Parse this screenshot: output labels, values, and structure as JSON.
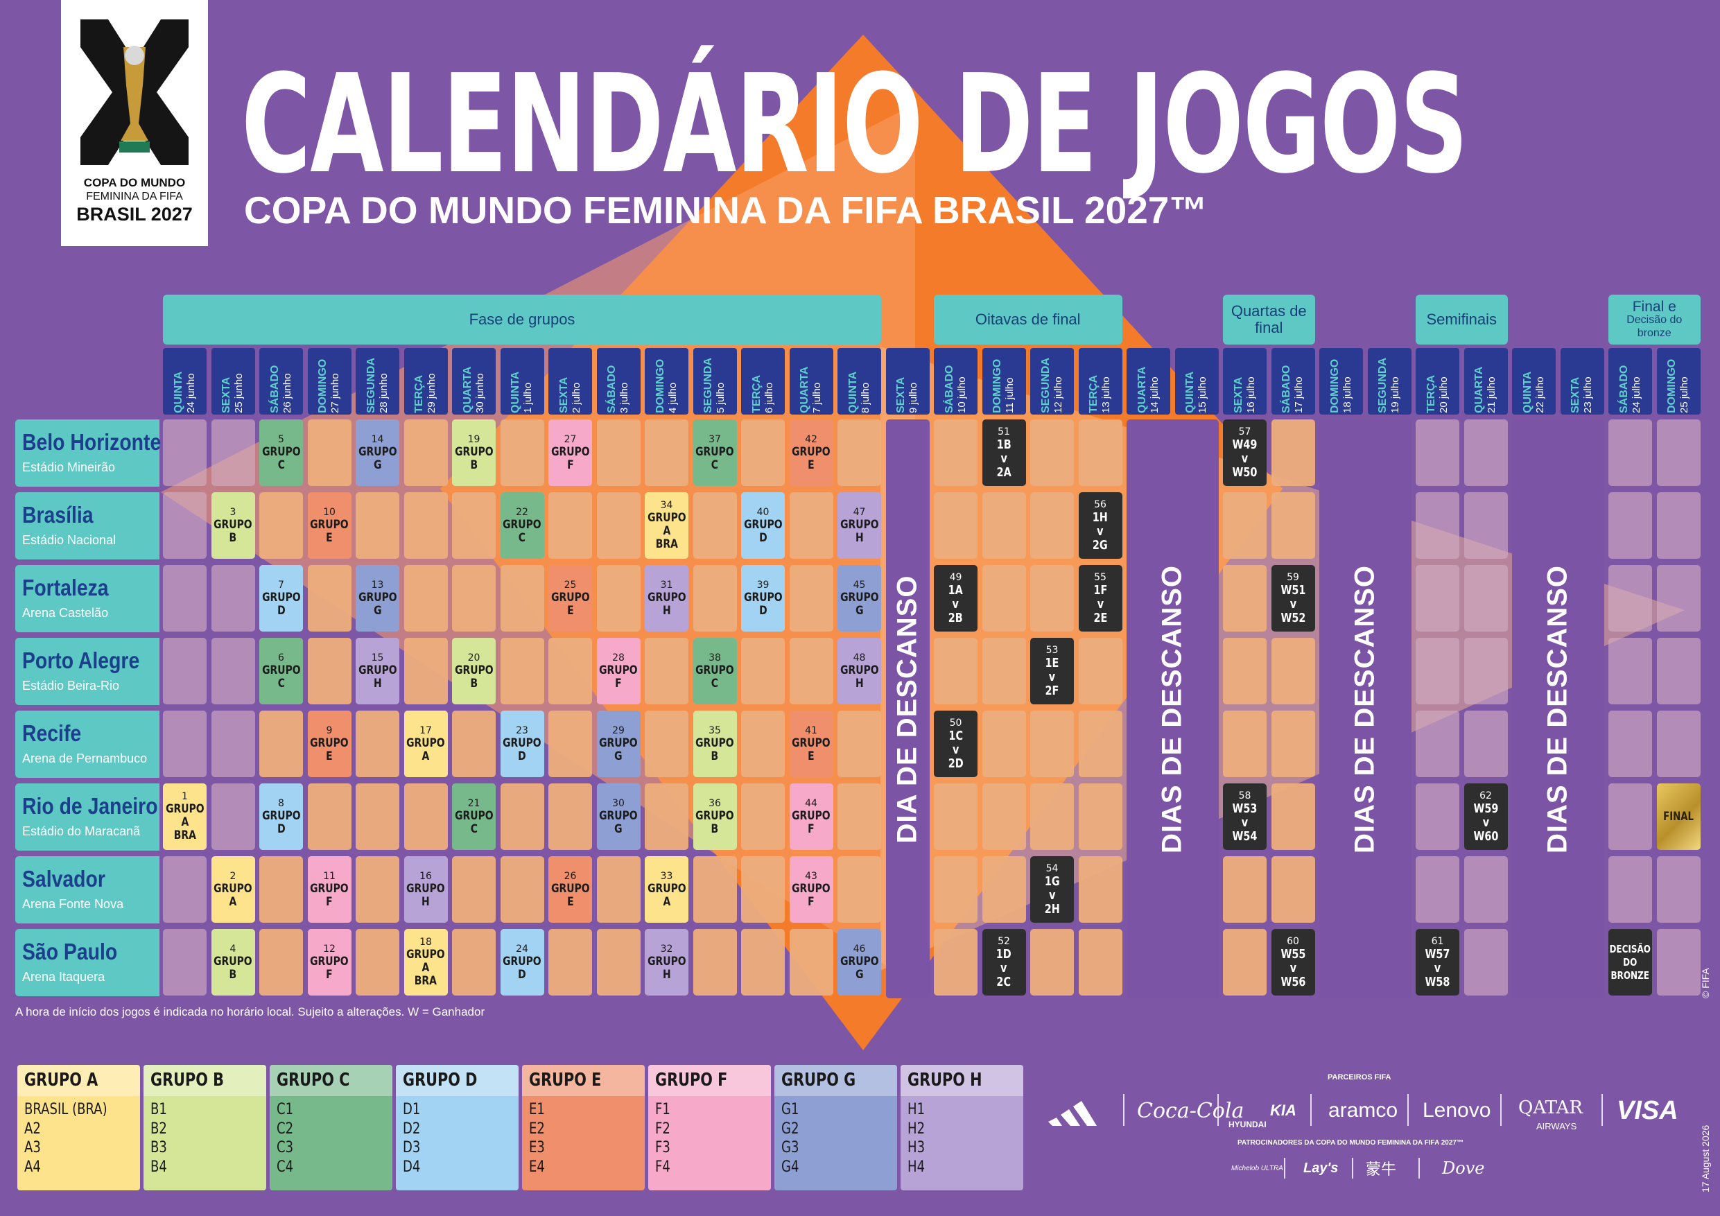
{
  "logo": {
    "line1": "COPA DO MUNDO",
    "line2": "FEMININA DA FIFA",
    "line3": "BRASIL 2027"
  },
  "header": {
    "title": "CALENDÁRIO DE JOGOS",
    "subtitle": "COPA DO MUNDO FEMININA DA FIFA BRASIL 2027™"
  },
  "phases": [
    {
      "label": "Fase de grupos",
      "start": 0,
      "span": 15
    },
    {
      "label": "Oitavas de final",
      "start": 16,
      "span": 4
    },
    {
      "label": "Quartas de final",
      "start": 22,
      "span": 2
    },
    {
      "label": "Semifinais",
      "start": 26,
      "span": 2
    },
    {
      "label": "Final e",
      "label2": "Decisão do bronze",
      "start": 30,
      "span": 2
    }
  ],
  "days": [
    {
      "wd": "QUINTA",
      "dt": "24 junho"
    },
    {
      "wd": "SEXTA",
      "dt": "25 junho"
    },
    {
      "wd": "SÁBADO",
      "dt": "26 junho"
    },
    {
      "wd": "DOMINGO",
      "dt": "27 junho"
    },
    {
      "wd": "SEGUNDA",
      "dt": "28 junho"
    },
    {
      "wd": "TERÇA",
      "dt": "29 junho"
    },
    {
      "wd": "QUARTA",
      "dt": "30 junho"
    },
    {
      "wd": "QUINTA",
      "dt": "1 julho"
    },
    {
      "wd": "SEXTA",
      "dt": "2 julho"
    },
    {
      "wd": "SÁBADO",
      "dt": "3 julho"
    },
    {
      "wd": "DOMINGO",
      "dt": "4 julho"
    },
    {
      "wd": "SEGUNDA",
      "dt": "5 julho"
    },
    {
      "wd": "TERÇA",
      "dt": "6 julho"
    },
    {
      "wd": "QUARTA",
      "dt": "7 julho"
    },
    {
      "wd": "QUINTA",
      "dt": "8 julho"
    },
    {
      "wd": "SEXTA",
      "dt": "9 julho"
    },
    {
      "wd": "SÁBADO",
      "dt": "10 julho"
    },
    {
      "wd": "DOMINGO",
      "dt": "11 julho"
    },
    {
      "wd": "SEGUNDA",
      "dt": "12 julho"
    },
    {
      "wd": "TERÇA",
      "dt": "13 julho"
    },
    {
      "wd": "QUARTA",
      "dt": "14 julho"
    },
    {
      "wd": "QUINTA",
      "dt": "15 julho"
    },
    {
      "wd": "SEXTA",
      "dt": "16 julho"
    },
    {
      "wd": "SÁBADO",
      "dt": "17 julho"
    },
    {
      "wd": "DOMINGO",
      "dt": "18 julho"
    },
    {
      "wd": "SEGUNDA",
      "dt": "19 julho"
    },
    {
      "wd": "TERÇA",
      "dt": "20 julho"
    },
    {
      "wd": "QUARTA",
      "dt": "21 julho"
    },
    {
      "wd": "QUINTA",
      "dt": "22 julho"
    },
    {
      "wd": "SEXTA",
      "dt": "23 julho"
    },
    {
      "wd": "SÁBADO",
      "dt": "24 julho"
    },
    {
      "wd": "DOMINGO",
      "dt": "25 julho"
    }
  ],
  "cities": [
    {
      "name": "Belo Horizonte",
      "stadium": "Estádio Mineirão"
    },
    {
      "name": "Brasília",
      "stadium": "Estádio Nacional"
    },
    {
      "name": "Fortaleza",
      "stadium": "Arena Castelão"
    },
    {
      "name": "Porto Alegre",
      "stadium": "Estádio Beira-Rio"
    },
    {
      "name": "Recife",
      "stadium": "Arena de Pernambuco"
    },
    {
      "name": "Rio de Janeiro",
      "stadium": "Estádio do Maracanã"
    },
    {
      "name": "Salvador",
      "stadium": "Arena Fonte Nova"
    },
    {
      "name": "São Paulo",
      "stadium": "Arena Itaquera"
    }
  ],
  "rest_blocks": [
    {
      "label": "DIA DE DESCANSO",
      "col": 15,
      "span": 1
    },
    {
      "label": "DIAS DE DESCANSO",
      "col": 20,
      "span": 2
    },
    {
      "label": "DIAS DE DESCANSO",
      "col": 24,
      "span": 2
    },
    {
      "label": "DIAS DE DESCANSO",
      "col": 28,
      "span": 2
    }
  ],
  "group_colors": {
    "A": "#fde38c",
    "B": "#d5e698",
    "C": "#78b98c",
    "D": "#a3d3f2",
    "E": "#ef8f6b",
    "F": "#f6a9c9",
    "G": "#8d9fd3",
    "H": "#b8a3d6"
  },
  "matches": [
    {
      "n": "1",
      "g": "A",
      "label": "GRUPO\nA\nBRA",
      "row": 5,
      "col": 0
    },
    {
      "n": "2",
      "g": "A",
      "label": "GRUPO\nA",
      "row": 6,
      "col": 1
    },
    {
      "n": "3",
      "g": "B",
      "label": "GRUPO\nB",
      "row": 1,
      "col": 1
    },
    {
      "n": "4",
      "g": "B",
      "label": "GRUPO\nB",
      "row": 7,
      "col": 1
    },
    {
      "n": "5",
      "g": "C",
      "label": "GRUPO\nC",
      "row": 0,
      "col": 2
    },
    {
      "n": "6",
      "g": "C",
      "label": "GRUPO\nC",
      "row": 3,
      "col": 2
    },
    {
      "n": "7",
      "g": "D",
      "label": "GRUPO\nD",
      "row": 2,
      "col": 2
    },
    {
      "n": "8",
      "g": "D",
      "label": "GRUPO\nD",
      "row": 5,
      "col": 2
    },
    {
      "n": "9",
      "g": "E",
      "label": "GRUPO\nE",
      "row": 4,
      "col": 3
    },
    {
      "n": "10",
      "g": "E",
      "label": "GRUPO\nE",
      "row": 1,
      "col": 3
    },
    {
      "n": "11",
      "g": "F",
      "label": "GRUPO\nF",
      "row": 6,
      "col": 3
    },
    {
      "n": "12",
      "g": "F",
      "label": "GRUPO\nF",
      "row": 7,
      "col": 3
    },
    {
      "n": "13",
      "g": "G",
      "label": "GRUPO\nG",
      "row": 2,
      "col": 4
    },
    {
      "n": "14",
      "g": "G",
      "label": "GRUPO\nG",
      "row": 0,
      "col": 4
    },
    {
      "n": "15",
      "g": "H",
      "label": "GRUPO\nH",
      "row": 3,
      "col": 4
    },
    {
      "n": "16",
      "g": "H",
      "label": "GRUPO\nH",
      "row": 6,
      "col": 5
    },
    {
      "n": "17",
      "g": "A",
      "label": "GRUPO\nA",
      "row": 4,
      "col": 5
    },
    {
      "n": "18",
      "g": "A",
      "label": "GRUPO\nA\nBRA",
      "row": 7,
      "col": 5
    },
    {
      "n": "19",
      "g": "B",
      "label": "GRUPO\nB",
      "row": 0,
      "col": 6
    },
    {
      "n": "20",
      "g": "B",
      "label": "GRUPO\nB",
      "row": 3,
      "col": 6
    },
    {
      "n": "21",
      "g": "C",
      "label": "GRUPO\nC",
      "row": 5,
      "col": 6
    },
    {
      "n": "22",
      "g": "C",
      "label": "GRUPO\nC",
      "row": 1,
      "col": 7
    },
    {
      "n": "23",
      "g": "D",
      "label": "GRUPO\nD",
      "row": 4,
      "col": 7
    },
    {
      "n": "24",
      "g": "D",
      "label": "GRUPO\nD",
      "row": 7,
      "col": 7
    },
    {
      "n": "25",
      "g": "E",
      "label": "GRUPO\nE",
      "row": 2,
      "col": 8
    },
    {
      "n": "26",
      "g": "E",
      "label": "GRUPO\nE",
      "row": 6,
      "col": 8
    },
    {
      "n": "27",
      "g": "F",
      "label": "GRUPO\nF",
      "row": 0,
      "col": 8
    },
    {
      "n": "28",
      "g": "F",
      "label": "GRUPO\nF",
      "row": 3,
      "col": 9
    },
    {
      "n": "29",
      "g": "G",
      "label": "GRUPO\nG",
      "row": 4,
      "col": 9
    },
    {
      "n": "30",
      "g": "G",
      "label": "GRUPO\nG",
      "row": 5,
      "col": 9
    },
    {
      "n": "31",
      "g": "H",
      "label": "GRUPO\nH",
      "row": 2,
      "col": 10
    },
    {
      "n": "32",
      "g": "H",
      "label": "GRUPO\nH",
      "row": 7,
      "col": 10
    },
    {
      "n": "33",
      "g": "A",
      "label": "GRUPO\nA",
      "row": 6,
      "col": 10
    },
    {
      "n": "34",
      "g": "A",
      "label": "GRUPO\nA\nBRA",
      "row": 1,
      "col": 10
    },
    {
      "n": "35",
      "g": "B",
      "label": "GRUPO\nB",
      "row": 4,
      "col": 11
    },
    {
      "n": "36",
      "g": "B",
      "label": "GRUPO\nB",
      "row": 5,
      "col": 11
    },
    {
      "n": "37",
      "g": "C",
      "label": "GRUPO\nC",
      "row": 0,
      "col": 11
    },
    {
      "n": "38",
      "g": "C",
      "label": "GRUPO\nC",
      "row": 3,
      "col": 11
    },
    {
      "n": "39",
      "g": "D",
      "label": "GRUPO\nD",
      "row": 2,
      "col": 12
    },
    {
      "n": "40",
      "g": "D",
      "label": "GRUPO\nD",
      "row": 1,
      "col": 12
    },
    {
      "n": "41",
      "g": "E",
      "label": "GRUPO\nE",
      "row": 4,
      "col": 13
    },
    {
      "n": "42",
      "g": "E",
      "label": "GRUPO\nE",
      "row": 0,
      "col": 13
    },
    {
      "n": "43",
      "g": "F",
      "label": "GRUPO\nF",
      "row": 6,
      "col": 13
    },
    {
      "n": "44",
      "g": "F",
      "label": "GRUPO\nF",
      "row": 5,
      "col": 13
    },
    {
      "n": "45",
      "g": "G",
      "label": "GRUPO\nG",
      "row": 2,
      "col": 14
    },
    {
      "n": "46",
      "g": "G",
      "label": "GRUPO\nG",
      "row": 7,
      "col": 14
    },
    {
      "n": "47",
      "g": "H",
      "label": "GRUPO\nH",
      "row": 1,
      "col": 14
    },
    {
      "n": "48",
      "g": "H",
      "label": "GRUPO\nH",
      "row": 3,
      "col": 14
    }
  ],
  "knockouts": [
    {
      "n": "49",
      "label": "1A\nv\n2B",
      "row": 2,
      "col": 16
    },
    {
      "n": "50",
      "label": "1C\nv\n2D",
      "row": 4,
      "col": 16
    },
    {
      "n": "51",
      "label": "1B\nv\n2A",
      "row": 0,
      "col": 17
    },
    {
      "n": "52",
      "label": "1D\nv\n2C",
      "row": 7,
      "col": 17
    },
    {
      "n": "53",
      "label": "1E\nv\n2F",
      "row": 3,
      "col": 18
    },
    {
      "n": "54",
      "label": "1G\nv\n2H",
      "row": 6,
      "col": 18
    },
    {
      "n": "55",
      "label": "1F\nv\n2E",
      "row": 2,
      "col": 19
    },
    {
      "n": "56",
      "label": "1H\nv\n2G",
      "row": 1,
      "col": 19
    },
    {
      "n": "57",
      "label": "W49\nv\nW50",
      "row": 0,
      "col": 22
    },
    {
      "n": "58",
      "label": "W53\nv\nW54",
      "row": 5,
      "col": 22
    },
    {
      "n": "59",
      "label": "W51\nv\nW52",
      "row": 2,
      "col": 23
    },
    {
      "n": "60",
      "label": "W55\nv\nW56",
      "row": 7,
      "col": 23
    },
    {
      "n": "61",
      "label": "W57\nv\nW58",
      "row": 7,
      "col": 26
    },
    {
      "n": "62",
      "label": "W59\nv\nW60",
      "row": 5,
      "col": 27
    },
    {
      "n": "",
      "label": "DECISÃO\nDO\nBRONZE",
      "row": 7,
      "col": 30,
      "small": true
    }
  ],
  "final": {
    "label": "FINAL",
    "row": 5,
    "col": 31
  },
  "footnote": "A hora de início dos jogos é indicada no horário local. Sujeito a alterações. W = Ganhador",
  "groups": [
    {
      "title": "GRUPO A",
      "color": "#fde38c",
      "teams": [
        "BRASIL (BRA)",
        "A2",
        "A3",
        "A4"
      ]
    },
    {
      "title": "GRUPO B",
      "color": "#d5e698",
      "teams": [
        "B1",
        "B2",
        "B3",
        "B4"
      ]
    },
    {
      "title": "GRUPO C",
      "color": "#78b98c",
      "teams": [
        "C1",
        "C2",
        "C3",
        "C4"
      ]
    },
    {
      "title": "GRUPO D",
      "color": "#a3d3f2",
      "teams": [
        "D1",
        "D2",
        "D3",
        "D4"
      ]
    },
    {
      "title": "GRUPO E",
      "color": "#ef8f6b",
      "teams": [
        "E1",
        "E2",
        "E3",
        "E4"
      ]
    },
    {
      "title": "GRUPO F",
      "color": "#f6a9c9",
      "teams": [
        "F1",
        "F2",
        "F3",
        "F4"
      ]
    },
    {
      "title": "GRUPO G",
      "color": "#8d9fd3",
      "teams": [
        "G1",
        "G2",
        "G3",
        "G4"
      ]
    },
    {
      "title": "GRUPO H",
      "color": "#b8a3d6",
      "teams": [
        "H1",
        "H2",
        "H3",
        "H4"
      ]
    }
  ],
  "sponsors": {
    "partners_heading": "PARCEIROS FIFA",
    "partners": [
      "Coca-Cola",
      "HYUNDAI",
      "KIA",
      "aramco",
      "Lenovo",
      "QATAR",
      "AIRWAYS",
      "VISA"
    ],
    "sponsors_heading": "PATROCINADORES DA COPA DO MUNDO FEMININA DA FIFA 2027™",
    "sponsors_list": [
      "Michelob ULTRA",
      "Lay's",
      "蒙牛",
      "Dove"
    ]
  },
  "copyright": "© FIFA",
  "date_stamp": "17 August 2026"
}
